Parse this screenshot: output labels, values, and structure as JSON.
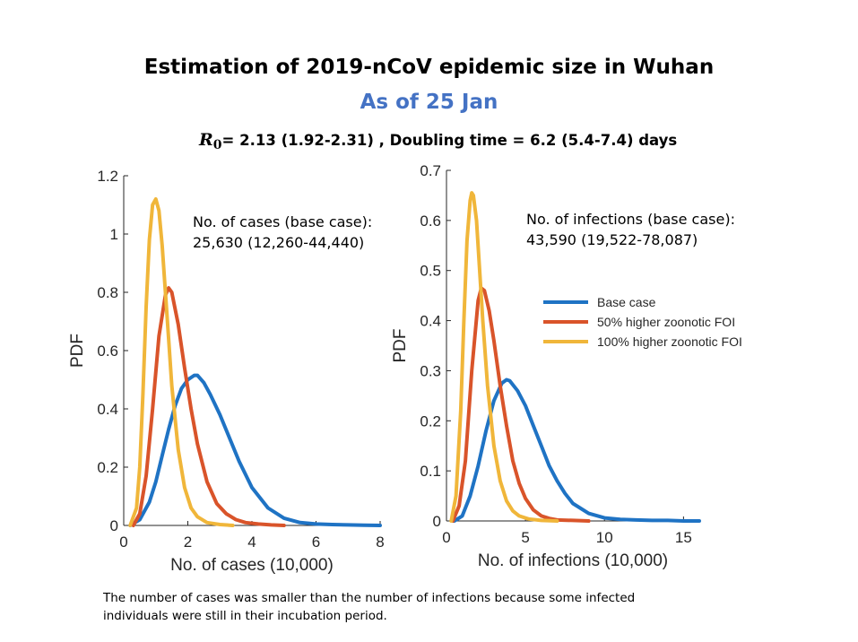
{
  "slide": {
    "title": "Estimation of 2019-nCoV epidemic size in Wuhan",
    "subtitle": "As of 25 Jan",
    "param_symbol": "R",
    "param_subscript": "0",
    "param_text": "= 2.13 (1.92-2.31) , Doubling time  = 6.2 (5.4-7.4) days",
    "footnote": "The number of cases was smaller than the number of infections because some infected individuals were still in their incubation period.",
    "colors": {
      "subtitle": "#4472c4"
    }
  },
  "chart_data": [
    {
      "type": "line",
      "title": "",
      "xlabel": "No. of cases (10,000)",
      "ylabel": "PDF",
      "xlim": [
        0,
        8
      ],
      "ylim": [
        0,
        1.2
      ],
      "xticks": [
        0,
        2,
        4,
        6,
        8
      ],
      "yticks": [
        0,
        0.2,
        0.4,
        0.6,
        0.8,
        1,
        1.2
      ],
      "xtick_labels": [
        "0",
        "2",
        "4",
        "6",
        "8"
      ],
      "ytick_labels": [
        "0",
        "0.2",
        "0.4",
        "0.6",
        "0.8",
        "1",
        "1.2"
      ],
      "annotation_lines": [
        "No. of cases (base case):",
        "25,630 (12,260-44,440)"
      ],
      "series": [
        {
          "name": "Base case",
          "color": "#1f73c4",
          "x": [
            0.2,
            0.5,
            0.8,
            1.0,
            1.2,
            1.4,
            1.6,
            1.8,
            2.0,
            2.2,
            2.3,
            2.5,
            2.7,
            3.0,
            3.3,
            3.6,
            4.0,
            4.5,
            5.0,
            5.5,
            6.0,
            6.5,
            7.0,
            7.5,
            8.0
          ],
          "values": [
            0.0,
            0.02,
            0.08,
            0.15,
            0.24,
            0.33,
            0.41,
            0.47,
            0.5,
            0.515,
            0.515,
            0.49,
            0.45,
            0.38,
            0.3,
            0.22,
            0.13,
            0.06,
            0.025,
            0.01,
            0.005,
            0.003,
            0.002,
            0.001,
            0.0
          ]
        },
        {
          "name": "50% higher zoonotic FOI",
          "color": "#d9542a",
          "x": [
            0.3,
            0.5,
            0.7,
            0.9,
            1.1,
            1.3,
            1.4,
            1.5,
            1.7,
            1.9,
            2.1,
            2.3,
            2.6,
            2.9,
            3.2,
            3.5,
            3.8,
            4.2,
            4.6,
            5.0
          ],
          "values": [
            0.0,
            0.04,
            0.17,
            0.4,
            0.65,
            0.79,
            0.815,
            0.8,
            0.69,
            0.54,
            0.4,
            0.28,
            0.15,
            0.075,
            0.04,
            0.02,
            0.01,
            0.005,
            0.002,
            0.0
          ]
        },
        {
          "name": "100% higher zoonotic FOI",
          "color": "#f0b63a",
          "x": [
            0.2,
            0.4,
            0.5,
            0.6,
            0.7,
            0.8,
            0.9,
            1.0,
            1.1,
            1.2,
            1.3,
            1.4,
            1.5,
            1.7,
            1.9,
            2.1,
            2.3,
            2.6,
            3.0,
            3.4
          ],
          "values": [
            0.0,
            0.06,
            0.2,
            0.45,
            0.75,
            0.98,
            1.1,
            1.12,
            1.08,
            0.96,
            0.8,
            0.64,
            0.48,
            0.26,
            0.13,
            0.06,
            0.03,
            0.01,
            0.003,
            0.0
          ]
        }
      ]
    },
    {
      "type": "line",
      "title": "",
      "xlabel": "No. of infections (10,000)",
      "ylabel": "PDF",
      "xlim": [
        0,
        16
      ],
      "ylim": [
        0,
        0.7
      ],
      "xticks": [
        0,
        5,
        10,
        15
      ],
      "yticks": [
        0,
        0.1,
        0.2,
        0.3,
        0.4,
        0.5,
        0.6,
        0.7
      ],
      "xtick_labels": [
        "0",
        "5",
        "10",
        "15"
      ],
      "ytick_labels": [
        "0",
        "0.1",
        "0.2",
        "0.3",
        "0.4",
        "0.5",
        "0.6",
        "0.7"
      ],
      "annotation_lines": [
        "No. of infections (base case):",
        "43,590 (19,522-78,087)"
      ],
      "legend_position": "right-middle",
      "series": [
        {
          "name": "Base case",
          "color": "#1f73c4",
          "x": [
            0.5,
            1.0,
            1.5,
            2.0,
            2.5,
            3.0,
            3.5,
            3.8,
            4.0,
            4.5,
            5.0,
            5.5,
            6.0,
            6.5,
            7.0,
            7.5,
            8.0,
            9.0,
            10.0,
            11.0,
            12.0,
            13.0,
            14.0,
            15.0,
            16.0
          ],
          "values": [
            0.0,
            0.01,
            0.05,
            0.11,
            0.18,
            0.24,
            0.275,
            0.282,
            0.28,
            0.26,
            0.23,
            0.19,
            0.15,
            0.11,
            0.08,
            0.055,
            0.035,
            0.015,
            0.006,
            0.003,
            0.002,
            0.001,
            0.001,
            0.0,
            0.0
          ]
        },
        {
          "name": "50% higher zoonotic FOI",
          "color": "#d9542a",
          "x": [
            0.4,
            0.8,
            1.2,
            1.6,
            2.0,
            2.2,
            2.4,
            2.7,
            3.0,
            3.4,
            3.8,
            4.2,
            4.6,
            5.0,
            5.5,
            6.0,
            6.5,
            7.0,
            8.0,
            9.0
          ],
          "values": [
            0.0,
            0.03,
            0.12,
            0.3,
            0.44,
            0.465,
            0.46,
            0.42,
            0.36,
            0.27,
            0.19,
            0.12,
            0.075,
            0.045,
            0.022,
            0.01,
            0.005,
            0.002,
            0.001,
            0.0
          ]
        },
        {
          "name": "100% higher zoonotic FOI",
          "color": "#f0b63a",
          "x": [
            0.3,
            0.6,
            0.9,
            1.1,
            1.3,
            1.5,
            1.6,
            1.7,
            1.9,
            2.1,
            2.3,
            2.6,
            3.0,
            3.4,
            3.8,
            4.2,
            4.6,
            5.2,
            6.0,
            7.0
          ],
          "values": [
            0.0,
            0.05,
            0.22,
            0.4,
            0.56,
            0.64,
            0.655,
            0.65,
            0.6,
            0.5,
            0.4,
            0.27,
            0.15,
            0.08,
            0.04,
            0.02,
            0.01,
            0.004,
            0.001,
            0.0
          ]
        }
      ]
    }
  ]
}
